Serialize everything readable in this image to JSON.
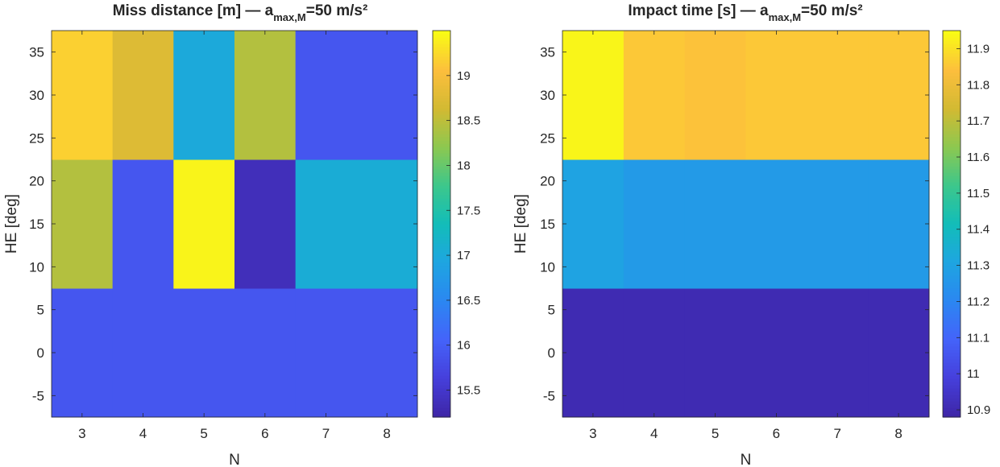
{
  "chart_data": [
    {
      "type": "heatmap",
      "title": {
        "pre": "Miss distance [m] — a",
        "sub": "max,M",
        "post": "=50 m/s²"
      },
      "xlabel": "N",
      "ylabel": "HE [deg]",
      "x": [
        3,
        4,
        5,
        6,
        7,
        8
      ],
      "y": [
        0,
        15,
        30
      ],
      "y_bands": [
        [
          -7.5,
          7.5
        ],
        [
          7.5,
          22.5
        ],
        [
          22.5,
          37.5
        ]
      ],
      "z": [
        [
          15.9,
          15.9,
          15.9,
          15.9,
          15.9,
          15.9
        ],
        [
          18.45,
          15.9,
          19.45,
          15.35,
          17.05,
          17.05
        ],
        [
          19.2,
          18.75,
          17.0,
          18.45,
          15.9,
          15.9
        ]
      ],
      "xticks": [
        "3",
        "4",
        "5",
        "6",
        "7",
        "8"
      ],
      "yticks": [
        "-5",
        "0",
        "5",
        "10",
        "15",
        "20",
        "25",
        "30",
        "35"
      ],
      "ylim": [
        -7.5,
        37.5
      ],
      "colormap": "parula",
      "clim": [
        15.2,
        19.5
      ],
      "colorbar_ticks": [
        "15.5",
        "16",
        "16.5",
        "17",
        "17.5",
        "18",
        "18.5",
        "19"
      ]
    },
    {
      "type": "heatmap",
      "title": {
        "pre": "Impact time [s] — a",
        "sub": "max,M",
        "post": "=50 m/s²"
      },
      "xlabel": "N",
      "ylabel": "HE [deg]",
      "x": [
        3,
        4,
        5,
        6,
        7,
        8
      ],
      "y": [
        0,
        15,
        30
      ],
      "y_bands": [
        [
          -7.5,
          7.5
        ],
        [
          7.5,
          22.5
        ],
        [
          22.5,
          37.5
        ]
      ],
      "z": [
        [
          10.9,
          10.9,
          10.9,
          10.9,
          10.9,
          10.9
        ],
        [
          11.3,
          11.27,
          11.27,
          11.27,
          11.27,
          11.27
        ],
        [
          11.94,
          11.86,
          11.85,
          11.86,
          11.86,
          11.86
        ]
      ],
      "xticks": [
        "3",
        "4",
        "5",
        "6",
        "7",
        "8"
      ],
      "yticks": [
        "-5",
        "0",
        "5",
        "10",
        "15",
        "20",
        "25",
        "30",
        "35"
      ],
      "ylim": [
        -7.5,
        37.5
      ],
      "colormap": "parula",
      "clim": [
        10.88,
        11.95
      ],
      "colorbar_ticks": [
        "10.9",
        "11",
        "11.1",
        "11.2",
        "11.3",
        "11.4",
        "11.5",
        "11.6",
        "11.7",
        "11.8",
        "11.9"
      ]
    }
  ]
}
